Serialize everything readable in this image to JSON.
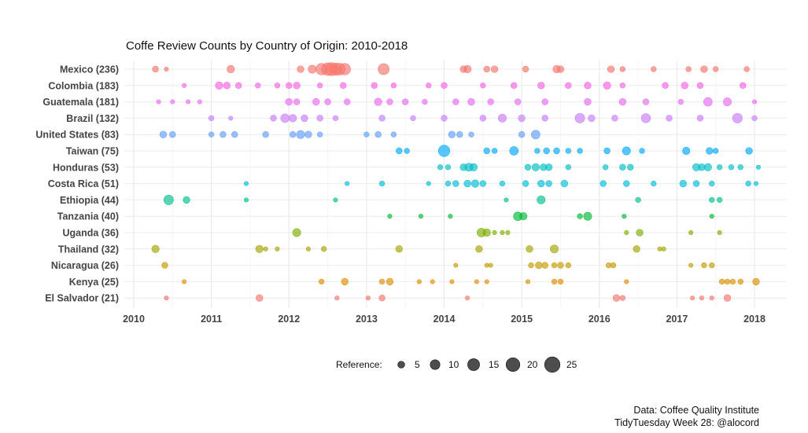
{
  "chart_data": {
    "type": "scatter",
    "title": "Coffe Review Counts by Country of Origin: 2010-2018",
    "xlabel": "",
    "ylabel": "",
    "xlim": [
      2010,
      2018.4
    ],
    "x_ticks": [
      "2010",
      "2011",
      "2012",
      "2013",
      "2014",
      "2015",
      "2016",
      "2017",
      "2018"
    ],
    "grid": true,
    "size_legend": {
      "title": "Reference:",
      "position": "bottom",
      "values": [
        5,
        10,
        15,
        20,
        25
      ],
      "labels": [
        "5",
        "10",
        "15",
        "20",
        "25"
      ]
    },
    "series": [
      {
        "name": "Mexico (236)",
        "color": "#F8766D",
        "points": [
          [
            2010.28,
            4
          ],
          [
            2010.42,
            2
          ],
          [
            2011.25,
            6
          ],
          [
            2012.15,
            5
          ],
          [
            2012.3,
            7
          ],
          [
            2012.42,
            14
          ],
          [
            2012.5,
            17
          ],
          [
            2012.55,
            18
          ],
          [
            2012.6,
            16
          ],
          [
            2012.65,
            15
          ],
          [
            2012.72,
            14
          ],
          [
            2013.22,
            13
          ],
          [
            2014.25,
            5
          ],
          [
            2014.3,
            6
          ],
          [
            2014.55,
            4
          ],
          [
            2014.65,
            5
          ],
          [
            2015.05,
            4
          ],
          [
            2015.45,
            6
          ],
          [
            2015.5,
            5
          ],
          [
            2016.15,
            5
          ],
          [
            2016.3,
            3
          ],
          [
            2016.7,
            3
          ],
          [
            2017.15,
            3
          ],
          [
            2017.35,
            5
          ],
          [
            2017.5,
            3
          ],
          [
            2017.9,
            3
          ]
        ]
      },
      {
        "name": "Colombia (183)",
        "color": "#F763E0",
        "points": [
          [
            2010.65,
            2
          ],
          [
            2011.1,
            6
          ],
          [
            2011.2,
            5
          ],
          [
            2011.35,
            4
          ],
          [
            2011.6,
            3
          ],
          [
            2011.85,
            3
          ],
          [
            2012.0,
            4
          ],
          [
            2012.1,
            5
          ],
          [
            2012.4,
            3
          ],
          [
            2012.7,
            4
          ],
          [
            2013.1,
            4
          ],
          [
            2013.35,
            3
          ],
          [
            2013.8,
            3
          ],
          [
            2014.0,
            4
          ],
          [
            2014.5,
            3
          ],
          [
            2014.9,
            4
          ],
          [
            2015.25,
            5
          ],
          [
            2015.6,
            4
          ],
          [
            2015.85,
            5
          ],
          [
            2016.1,
            6
          ],
          [
            2016.3,
            3
          ],
          [
            2016.85,
            4
          ],
          [
            2017.1,
            5
          ],
          [
            2017.3,
            4
          ],
          [
            2017.85,
            4
          ]
        ]
      },
      {
        "name": "Guatemala (181)",
        "color": "#E76BF3",
        "points": [
          [
            2010.32,
            2
          ],
          [
            2010.5,
            2
          ],
          [
            2010.7,
            2
          ],
          [
            2010.85,
            2
          ],
          [
            2012.0,
            5
          ],
          [
            2012.1,
            4
          ],
          [
            2012.35,
            5
          ],
          [
            2012.5,
            4
          ],
          [
            2012.75,
            4
          ],
          [
            2013.15,
            6
          ],
          [
            2013.3,
            4
          ],
          [
            2013.5,
            4
          ],
          [
            2013.75,
            3
          ],
          [
            2014.15,
            4
          ],
          [
            2014.35,
            5
          ],
          [
            2014.6,
            4
          ],
          [
            2014.95,
            4
          ],
          [
            2015.3,
            4
          ],
          [
            2015.85,
            5
          ],
          [
            2016.3,
            5
          ],
          [
            2016.6,
            4
          ],
          [
            2017.05,
            3
          ],
          [
            2017.4,
            8
          ],
          [
            2017.65,
            7
          ],
          [
            2018.0,
            2
          ]
        ]
      },
      {
        "name": "Brazil (132)",
        "color": "#C77CFF",
        "points": [
          [
            2011.0,
            3
          ],
          [
            2011.25,
            2
          ],
          [
            2011.8,
            4
          ],
          [
            2011.95,
            8
          ],
          [
            2012.05,
            6
          ],
          [
            2012.2,
            5
          ],
          [
            2012.4,
            4
          ],
          [
            2012.6,
            3
          ],
          [
            2013.2,
            4
          ],
          [
            2013.6,
            3
          ],
          [
            2014.0,
            4
          ],
          [
            2014.5,
            4
          ],
          [
            2014.75,
            7
          ],
          [
            2015.0,
            5
          ],
          [
            2015.3,
            4
          ],
          [
            2015.75,
            10
          ],
          [
            2015.9,
            5
          ],
          [
            2016.2,
            4
          ],
          [
            2016.6,
            9
          ],
          [
            2016.9,
            4
          ],
          [
            2017.3,
            4
          ],
          [
            2017.78,
            10
          ],
          [
            2018.0,
            3
          ]
        ]
      },
      {
        "name": "United States (83)",
        "color": "#619CFF",
        "points": [
          [
            2010.38,
            5
          ],
          [
            2010.5,
            4
          ],
          [
            2011.0,
            3
          ],
          [
            2011.15,
            4
          ],
          [
            2011.3,
            4
          ],
          [
            2011.7,
            4
          ],
          [
            2012.05,
            4
          ],
          [
            2012.15,
            7
          ],
          [
            2012.25,
            5
          ],
          [
            2012.4,
            3
          ],
          [
            2013.0,
            3
          ],
          [
            2013.15,
            4
          ],
          [
            2013.35,
            3
          ],
          [
            2014.1,
            5
          ],
          [
            2014.2,
            4
          ],
          [
            2014.35,
            3
          ],
          [
            2015.0,
            4
          ],
          [
            2015.18,
            8
          ]
        ]
      },
      {
        "name": "Taiwan (75)",
        "color": "#00A9FF",
        "points": [
          [
            2013.42,
            4
          ],
          [
            2013.52,
            3
          ],
          [
            2014.0,
            14
          ],
          [
            2014.55,
            4
          ],
          [
            2014.65,
            3
          ],
          [
            2014.9,
            8
          ],
          [
            2015.2,
            3
          ],
          [
            2015.32,
            4
          ],
          [
            2015.45,
            4
          ],
          [
            2015.6,
            3
          ],
          [
            2015.75,
            3
          ],
          [
            2016.1,
            4
          ],
          [
            2016.35,
            7
          ],
          [
            2016.55,
            3
          ],
          [
            2017.12,
            6
          ],
          [
            2017.42,
            5
          ],
          [
            2017.5,
            3
          ],
          [
            2017.93,
            5
          ]
        ]
      },
      {
        "name": "Honduras (53)",
        "color": "#00BFC4",
        "points": [
          [
            2013.95,
            3
          ],
          [
            2014.05,
            3
          ],
          [
            2014.25,
            5
          ],
          [
            2014.32,
            7
          ],
          [
            2014.38,
            6
          ],
          [
            2015.08,
            4
          ],
          [
            2015.18,
            6
          ],
          [
            2015.28,
            5
          ],
          [
            2015.35,
            5
          ],
          [
            2015.6,
            3
          ],
          [
            2016.08,
            3
          ],
          [
            2016.3,
            4
          ],
          [
            2016.4,
            4
          ],
          [
            2017.25,
            6
          ],
          [
            2017.32,
            5
          ],
          [
            2017.4,
            6
          ],
          [
            2017.55,
            3
          ],
          [
            2017.7,
            3
          ],
          [
            2017.82,
            3
          ],
          [
            2018.05,
            2
          ]
        ]
      },
      {
        "name": "Costa Rica (51)",
        "color": "#00BCD8",
        "points": [
          [
            2011.45,
            2
          ],
          [
            2012.75,
            2
          ],
          [
            2013.2,
            3
          ],
          [
            2013.8,
            2
          ],
          [
            2014.05,
            3
          ],
          [
            2014.15,
            4
          ],
          [
            2014.3,
            5
          ],
          [
            2014.4,
            6
          ],
          [
            2014.5,
            4
          ],
          [
            2014.75,
            3
          ],
          [
            2015.05,
            4
          ],
          [
            2015.25,
            5
          ],
          [
            2015.35,
            4
          ],
          [
            2015.55,
            5
          ],
          [
            2016.05,
            4
          ],
          [
            2016.35,
            4
          ],
          [
            2016.7,
            3
          ],
          [
            2017.08,
            5
          ],
          [
            2017.25,
            4
          ],
          [
            2017.45,
            3
          ],
          [
            2017.92,
            3
          ],
          [
            2018.02,
            2
          ]
        ]
      },
      {
        "name": "Ethiopia (44)",
        "color": "#00C08B",
        "points": [
          [
            2010.45,
            10
          ],
          [
            2010.68,
            5
          ],
          [
            2011.45,
            2
          ],
          [
            2012.6,
            2
          ],
          [
            2014.8,
            2
          ],
          [
            2015.25,
            7
          ],
          [
            2016.5,
            3
          ],
          [
            2017.45,
            3
          ],
          [
            2017.55,
            3
          ]
        ]
      },
      {
        "name": "Tanzania (40)",
        "color": "#00BA38",
        "points": [
          [
            2013.3,
            2
          ],
          [
            2013.7,
            2
          ],
          [
            2014.08,
            2
          ],
          [
            2014.95,
            8
          ],
          [
            2015.02,
            6
          ],
          [
            2015.75,
            3
          ],
          [
            2015.85,
            7
          ],
          [
            2016.32,
            2
          ],
          [
            2017.45,
            2
          ]
        ]
      },
      {
        "name": "Uganda (36)",
        "color": "#7CAE00",
        "points": [
          [
            2012.1,
            7
          ],
          [
            2014.48,
            8
          ],
          [
            2014.55,
            6
          ],
          [
            2014.65,
            2
          ],
          [
            2014.75,
            2
          ],
          [
            2014.82,
            2
          ],
          [
            2016.35,
            2
          ],
          [
            2016.52,
            5
          ],
          [
            2017.18,
            2
          ],
          [
            2017.55,
            2
          ]
        ]
      },
      {
        "name": "Thailand (32)",
        "color": "#A3A500",
        "points": [
          [
            2010.28,
            6
          ],
          [
            2011.62,
            6
          ],
          [
            2011.7,
            2
          ],
          [
            2011.85,
            2
          ],
          [
            2012.25,
            2
          ],
          [
            2012.45,
            3
          ],
          [
            2013.42,
            5
          ],
          [
            2014.45,
            5
          ],
          [
            2015.1,
            5
          ],
          [
            2015.42,
            7
          ],
          [
            2016.48,
            5
          ],
          [
            2016.78,
            2
          ],
          [
            2016.83,
            2
          ]
        ]
      },
      {
        "name": "Nicaragua (26)",
        "color": "#C49A00",
        "points": [
          [
            2010.4,
            4
          ],
          [
            2014.15,
            2
          ],
          [
            2014.55,
            2
          ],
          [
            2014.6,
            2
          ],
          [
            2015.12,
            3
          ],
          [
            2015.22,
            5
          ],
          [
            2015.3,
            4
          ],
          [
            2015.42,
            3
          ],
          [
            2015.5,
            4
          ],
          [
            2015.6,
            3
          ],
          [
            2016.12,
            3
          ],
          [
            2016.18,
            3
          ],
          [
            2017.18,
            2
          ],
          [
            2017.35,
            3
          ],
          [
            2017.45,
            3
          ]
        ]
      },
      {
        "name": "Kenya (25)",
        "color": "#DB8E00",
        "points": [
          [
            2010.65,
            2
          ],
          [
            2012.42,
            3
          ],
          [
            2012.72,
            5
          ],
          [
            2013.2,
            3
          ],
          [
            2013.3,
            5
          ],
          [
            2013.68,
            2
          ],
          [
            2013.85,
            2
          ],
          [
            2014.1,
            2
          ],
          [
            2014.42,
            2
          ],
          [
            2014.55,
            2
          ],
          [
            2015.08,
            2
          ],
          [
            2015.42,
            3
          ],
          [
            2015.5,
            3
          ],
          [
            2016.35,
            2
          ],
          [
            2017.58,
            3
          ],
          [
            2017.65,
            3
          ],
          [
            2017.72,
            3
          ],
          [
            2017.82,
            3
          ],
          [
            2018.02,
            5
          ]
        ]
      },
      {
        "name": "El Salvador (21)",
        "color": "#F8766D",
        "points": [
          [
            2010.42,
            2
          ],
          [
            2011.62,
            5
          ],
          [
            2012.62,
            2
          ],
          [
            2013.2,
            4
          ],
          [
            2013.02,
            2
          ],
          [
            2014.3,
            2
          ],
          [
            2016.22,
            5
          ],
          [
            2016.3,
            3
          ],
          [
            2017.2,
            2
          ],
          [
            2017.32,
            2
          ],
          [
            2017.45,
            2
          ],
          [
            2017.65,
            5
          ]
        ]
      }
    ]
  },
  "caption": {
    "line1": "Data: Coffee Quality Institute",
    "line2": "TidyTuesday Week 28: @alocord"
  }
}
